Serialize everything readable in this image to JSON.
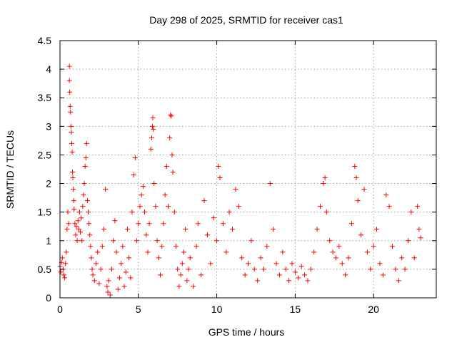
{
  "chart_data": {
    "type": "scatter",
    "title": "Day 298 of 2025, SRMTID for receiver cas1",
    "xlabel": "GPS time / hours",
    "ylabel": "SRMTID / TECUs",
    "xlim": [
      0,
      24
    ],
    "ylim": [
      0,
      4.5
    ],
    "xticks": [
      0,
      5,
      10,
      15,
      20
    ],
    "xtick_labels": [
      "0",
      "5",
      "10",
      "15",
      "20"
    ],
    "yticks": [
      0,
      0.5,
      1,
      1.5,
      2,
      2.5,
      3,
      3.5,
      4,
      4.5
    ],
    "ytick_labels": [
      "0",
      "0.5",
      "1",
      "1.5",
      "2",
      "2.5",
      "3",
      "3.5",
      "4",
      "4.5"
    ],
    "grid": true,
    "marker": "plus",
    "series": [
      {
        "name": "SRMTID",
        "color": "#ff0000",
        "points": [
          [
            0.0,
            0.55
          ],
          [
            0.05,
            0.45
          ],
          [
            0.1,
            0.62
          ],
          [
            0.15,
            0.7
          ],
          [
            0.2,
            0.5
          ],
          [
            0.25,
            0.4
          ],
          [
            0.3,
            0.35
          ],
          [
            0.35,
            0.6
          ],
          [
            0.4,
            0.8
          ],
          [
            0.45,
            1.2
          ],
          [
            0.5,
            1.5
          ],
          [
            0.55,
            1.3
          ],
          [
            0.6,
            4.05
          ],
          [
            0.6,
            3.8
          ],
          [
            0.62,
            3.6
          ],
          [
            0.65,
            3.35
          ],
          [
            0.67,
            3.25
          ],
          [
            0.7,
            3.0
          ],
          [
            0.72,
            2.9
          ],
          [
            0.75,
            2.7
          ],
          [
            0.78,
            2.55
          ],
          [
            0.8,
            2.2
          ],
          [
            0.82,
            2.1
          ],
          [
            0.85,
            1.9
          ],
          [
            0.88,
            1.7
          ],
          [
            0.9,
            1.55
          ],
          [
            0.95,
            1.3
          ],
          [
            1.0,
            1.1
          ],
          [
            1.05,
            1.25
          ],
          [
            1.1,
            1.0
          ],
          [
            1.15,
            1.35
          ],
          [
            1.2,
            1.2
          ],
          [
            1.25,
            1.5
          ],
          [
            1.3,
            1.15
          ],
          [
            1.35,
            1.4
          ],
          [
            1.4,
            1.0
          ],
          [
            1.45,
            1.6
          ],
          [
            1.5,
            1.8
          ],
          [
            1.55,
            2.0
          ],
          [
            1.6,
            2.3
          ],
          [
            1.65,
            2.45
          ],
          [
            1.7,
            2.7
          ],
          [
            1.75,
            1.7
          ],
          [
            1.8,
            1.5
          ],
          [
            1.85,
            1.3
          ],
          [
            1.9,
            1.1
          ],
          [
            1.95,
            0.9
          ],
          [
            2.0,
            0.7
          ],
          [
            2.05,
            0.5
          ],
          [
            2.1,
            0.4
          ],
          [
            2.2,
            0.3
          ],
          [
            2.3,
            0.6
          ],
          [
            2.4,
            0.8
          ],
          [
            2.5,
            0.25
          ],
          [
            2.6,
            0.5
          ],
          [
            2.7,
            0.9
          ],
          [
            2.8,
            1.2
          ],
          [
            2.9,
            1.9
          ],
          [
            3.0,
            0.2
          ],
          [
            3.05,
            0.1
          ],
          [
            3.1,
            0.3
          ],
          [
            3.2,
            0.05
          ],
          [
            3.3,
            0.5
          ],
          [
            3.4,
            1.0
          ],
          [
            3.5,
            1.35
          ],
          [
            3.6,
            0.8
          ],
          [
            3.7,
            0.15
          ],
          [
            3.8,
            0.35
          ],
          [
            3.9,
            0.6
          ],
          [
            4.0,
            0.9
          ],
          [
            4.1,
            0.2
          ],
          [
            4.2,
            0.45
          ],
          [
            4.3,
            1.2
          ],
          [
            4.4,
            0.7
          ],
          [
            4.5,
            0.35
          ],
          [
            4.6,
            1.5
          ],
          [
            4.7,
            2.15
          ],
          [
            4.8,
            2.45
          ],
          [
            4.9,
            1.0
          ],
          [
            5.0,
            1.3
          ],
          [
            5.1,
            1.6
          ],
          [
            5.2,
            1.8
          ],
          [
            5.3,
            1.95
          ],
          [
            5.4,
            1.5
          ],
          [
            5.5,
            1.1
          ],
          [
            5.6,
            0.8
          ],
          [
            5.7,
            1.3
          ],
          [
            5.8,
            2.6
          ],
          [
            5.85,
            2.8
          ],
          [
            5.9,
            3.0
          ],
          [
            5.92,
            3.15
          ],
          [
            5.95,
            2.95
          ],
          [
            6.0,
            2.0
          ],
          [
            6.1,
            1.6
          ],
          [
            6.2,
            1.0
          ],
          [
            6.3,
            0.7
          ],
          [
            6.4,
            0.4
          ],
          [
            6.5,
            0.9
          ],
          [
            6.6,
            1.3
          ],
          [
            6.7,
            1.8
          ],
          [
            6.8,
            2.3
          ],
          [
            6.9,
            1.6
          ],
          [
            7.0,
            2.8
          ],
          [
            7.05,
            3.2
          ],
          [
            7.1,
            3.18
          ],
          [
            7.15,
            2.5
          ],
          [
            7.2,
            2.2
          ],
          [
            7.3,
            1.5
          ],
          [
            7.4,
            0.9
          ],
          [
            7.5,
            0.5
          ],
          [
            7.6,
            0.2
          ],
          [
            7.7,
            0.4
          ],
          [
            7.8,
            0.6
          ],
          [
            7.9,
            0.8
          ],
          [
            8.0,
            1.2
          ],
          [
            8.1,
            0.3
          ],
          [
            8.2,
            0.5
          ],
          [
            8.3,
            0.7
          ],
          [
            8.5,
            0.2
          ],
          [
            8.7,
            0.9
          ],
          [
            8.8,
            1.3
          ],
          [
            9.0,
            0.4
          ],
          [
            9.2,
            1.7
          ],
          [
            9.4,
            1.1
          ],
          [
            9.6,
            0.6
          ],
          [
            9.8,
            1.4
          ],
          [
            10.0,
            1.0
          ],
          [
            10.1,
            2.3
          ],
          [
            10.2,
            2.1
          ],
          [
            10.4,
            1.3
          ],
          [
            10.6,
            0.8
          ],
          [
            10.8,
            1.5
          ],
          [
            11.0,
            1.2
          ],
          [
            11.2,
            1.9
          ],
          [
            11.4,
            1.6
          ],
          [
            11.6,
            0.7
          ],
          [
            11.8,
            0.4
          ],
          [
            12.0,
            0.6
          ],
          [
            12.2,
            1.0
          ],
          [
            12.4,
            0.5
          ],
          [
            12.6,
            0.3
          ],
          [
            12.8,
            0.7
          ],
          [
            13.0,
            0.5
          ],
          [
            13.2,
            0.9
          ],
          [
            13.4,
            2.0
          ],
          [
            13.6,
            1.2
          ],
          [
            13.8,
            0.6
          ],
          [
            14.0,
            0.4
          ],
          [
            14.2,
            0.8
          ],
          [
            14.4,
            0.5
          ],
          [
            14.6,
            0.3
          ],
          [
            14.8,
            0.6
          ],
          [
            15.0,
            0.45
          ],
          [
            15.2,
            0.35
          ],
          [
            15.4,
            0.55
          ],
          [
            15.6,
            0.4
          ],
          [
            15.8,
            0.3
          ],
          [
            16.0,
            0.5
          ],
          [
            16.2,
            0.8
          ],
          [
            16.4,
            1.2
          ],
          [
            16.6,
            1.6
          ],
          [
            16.8,
            2.0
          ],
          [
            16.9,
            2.1
          ],
          [
            17.0,
            1.5
          ],
          [
            17.2,
            1.0
          ],
          [
            17.4,
            0.8
          ],
          [
            17.6,
            0.7
          ],
          [
            17.8,
            0.9
          ],
          [
            18.0,
            0.6
          ],
          [
            18.2,
            0.4
          ],
          [
            18.4,
            0.7
          ],
          [
            18.6,
            1.3
          ],
          [
            18.8,
            2.3
          ],
          [
            18.9,
            2.1
          ],
          [
            19.0,
            1.7
          ],
          [
            19.2,
            1.1
          ],
          [
            19.4,
            1.9
          ],
          [
            19.6,
            0.8
          ],
          [
            19.8,
            0.5
          ],
          [
            20.0,
            0.9
          ],
          [
            20.2,
            1.2
          ],
          [
            20.4,
            0.6
          ],
          [
            20.6,
            0.4
          ],
          [
            20.8,
            1.8
          ],
          [
            21.0,
            1.6
          ],
          [
            21.2,
            0.9
          ],
          [
            21.4,
            0.5
          ],
          [
            21.6,
            0.3
          ],
          [
            21.8,
            0.7
          ],
          [
            22.0,
            0.5
          ],
          [
            22.2,
            1.0
          ],
          [
            22.4,
            1.5
          ],
          [
            22.6,
            0.7
          ],
          [
            22.8,
            1.6
          ],
          [
            22.9,
            1.2
          ],
          [
            23.0,
            1.05
          ]
        ]
      }
    ]
  }
}
